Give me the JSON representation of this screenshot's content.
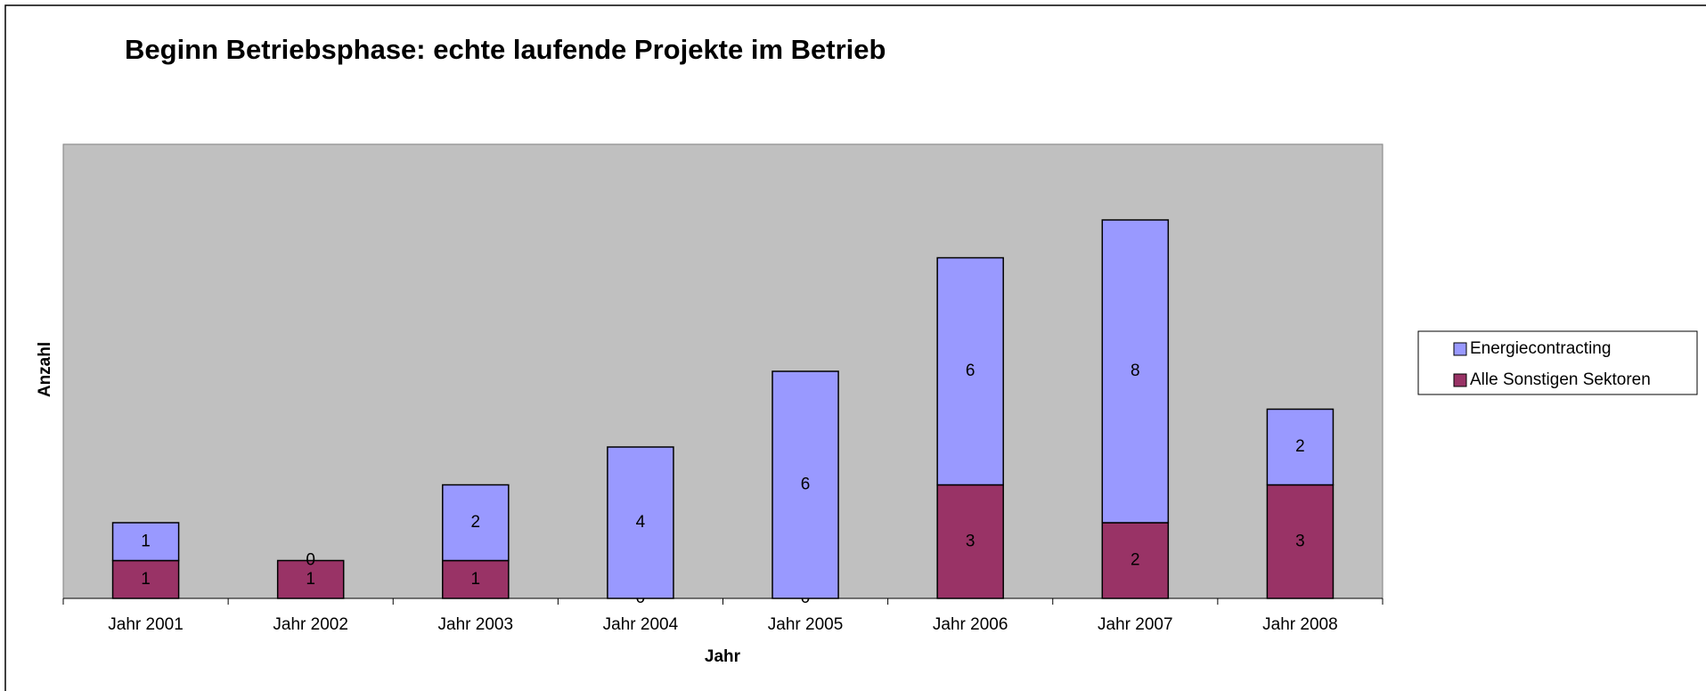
{
  "chart_data": {
    "type": "stacked_bar",
    "title": "Beginn Betriebsphase: echte laufende Projekte im Betrieb",
    "x_label": "Jahr",
    "y_label": "Anzahl",
    "categories": [
      "Jahr 2001",
      "Jahr 2002",
      "Jahr 2003",
      "Jahr 2004",
      "Jahr 2005",
      "Jahr 2006",
      "Jahr 2007",
      "Jahr 2008"
    ],
    "series": [
      {
        "name": "Alle Sonstigen Sektoren",
        "color": "#993366",
        "values": [
          1,
          1,
          1,
          0,
          0,
          3,
          2,
          3
        ]
      },
      {
        "name": "Energiecontracting",
        "color": "#9999ff",
        "values": [
          1,
          0,
          2,
          4,
          6,
          6,
          8,
          2
        ]
      }
    ],
    "ylim": [
      0,
      12
    ],
    "plot_background": "#c0c0c0",
    "legend": "right"
  }
}
